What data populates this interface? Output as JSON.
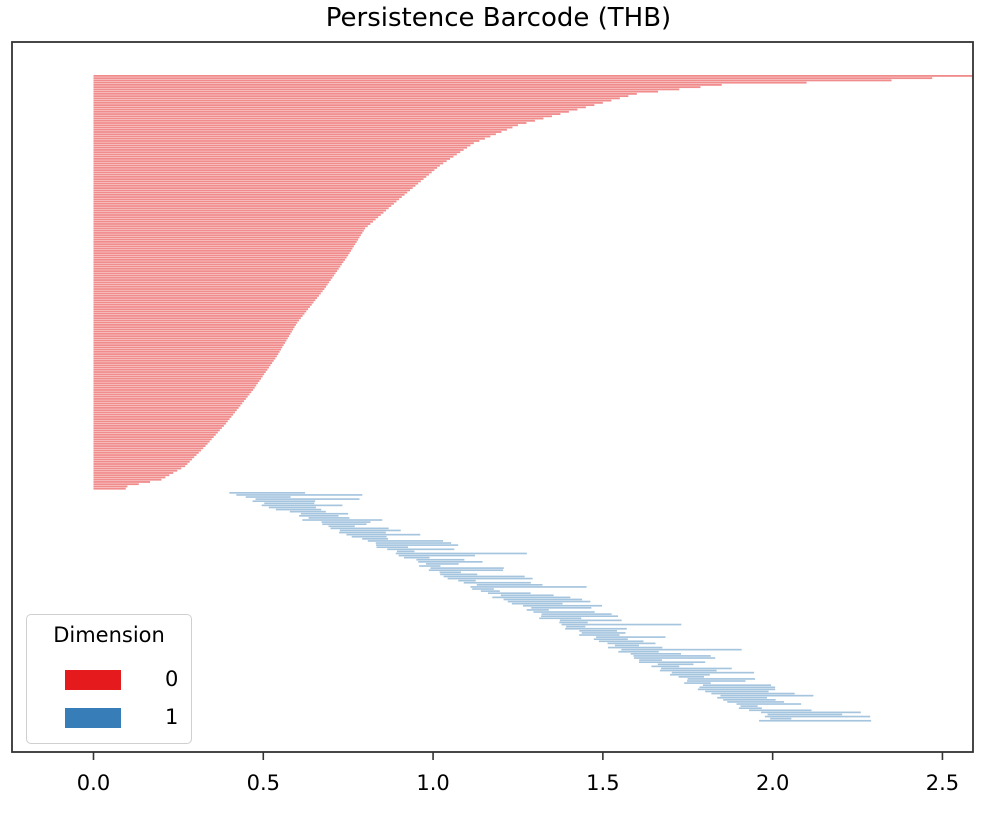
{
  "chart_data": {
    "type": "barcode",
    "title": "Persistence Barcode (THB)",
    "xlabel": "",
    "ylabel": "",
    "xlim": [
      -0.24,
      2.59
    ],
    "xticks": [
      "0.0",
      "0.5",
      "1.0",
      "1.5",
      "2.0",
      "2.5"
    ],
    "xtick_values": [
      0.0,
      0.5,
      1.0,
      1.5,
      2.0,
      2.5
    ],
    "grid": false,
    "legend": {
      "title": "Dimension",
      "placement": "lower-left",
      "entries": [
        {
          "label": "0",
          "color": "#e41a1c"
        },
        {
          "label": "1",
          "color": "#377eb8"
        }
      ]
    },
    "series": [
      {
        "name": "0",
        "color": "#e41a1c",
        "bar_count": 185,
        "births": "all 0.0",
        "death_profile": [
          [
            0,
            2.59
          ],
          [
            2,
            2.35
          ],
          [
            4,
            1.85
          ],
          [
            8,
            1.6
          ],
          [
            14,
            1.45
          ],
          [
            22,
            1.25
          ],
          [
            30,
            1.12
          ],
          [
            40,
            1.02
          ],
          [
            55,
            0.9
          ],
          [
            68,
            0.8
          ],
          [
            80,
            0.75
          ],
          [
            95,
            0.68
          ],
          [
            110,
            0.6
          ],
          [
            125,
            0.54
          ],
          [
            140,
            0.47
          ],
          [
            155,
            0.39
          ],
          [
            165,
            0.33
          ],
          [
            174,
            0.27
          ],
          [
            180,
            0.2
          ],
          [
            183,
            0.1
          ],
          [
            185,
            0.09
          ]
        ]
      },
      {
        "name": "1",
        "color": "#377eb8",
        "bar_count": 110,
        "birth_range": [
          0.4,
          2.0
        ],
        "death_range": [
          0.72,
          2.29
        ]
      }
    ]
  }
}
